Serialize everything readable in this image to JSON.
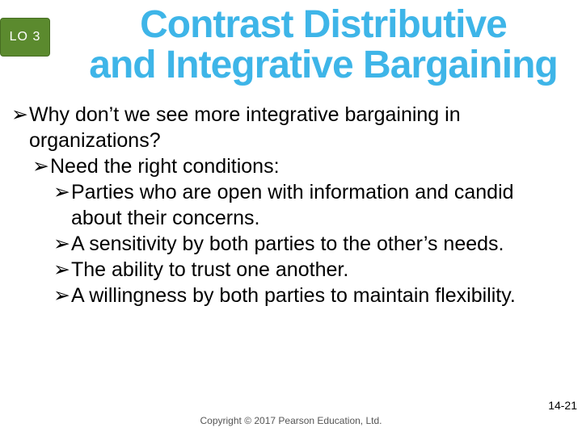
{
  "badge": {
    "label": "LO 3",
    "bg": "#5b8a2e"
  },
  "title": {
    "line1": "Contrast Distributive",
    "line2": "and Integrative Bargaining",
    "color": "#3eb5e8"
  },
  "bullets": {
    "glyph": "➢",
    "items": [
      {
        "level": 0,
        "text": "Why don’t we see more integrative bargaining in organizations?"
      },
      {
        "level": 1,
        "text": "Need the right conditions:"
      },
      {
        "level": 2,
        "text": "Parties who are open with information and candid about their concerns."
      },
      {
        "level": 2,
        "text": "A sensitivity by both parties to the other’s needs."
      },
      {
        "level": 2,
        "text": "The ability to trust one another."
      },
      {
        "level": 2,
        "text": "A willingness by both parties to maintain flexibility."
      }
    ]
  },
  "footer": "Copyright © 2017 Pearson Education, Ltd.",
  "page_number": "14-21",
  "colors": {
    "background": "#ffffff",
    "text": "#000000"
  }
}
